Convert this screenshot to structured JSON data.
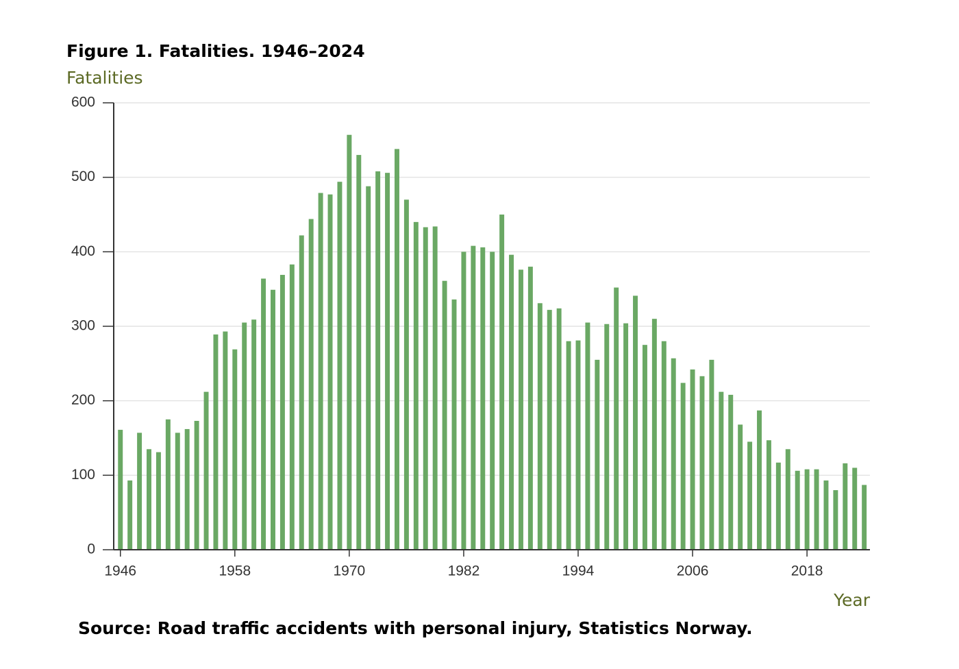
{
  "chart_data": {
    "type": "bar",
    "title": "Figure 1. Fatalities. 1946–2024",
    "y_label": "Fatalities",
    "x_label": "Year",
    "source": "Source: Road traffic accidents with personal injury, Statistics Norway.",
    "color": "#6aa864",
    "grid": true,
    "x": [
      1946,
      1947,
      1948,
      1949,
      1950,
      1951,
      1952,
      1953,
      1954,
      1955,
      1956,
      1957,
      1958,
      1959,
      1960,
      1961,
      1962,
      1963,
      1964,
      1965,
      1966,
      1967,
      1968,
      1969,
      1970,
      1971,
      1972,
      1973,
      1974,
      1975,
      1976,
      1977,
      1978,
      1979,
      1980,
      1981,
      1982,
      1983,
      1984,
      1985,
      1986,
      1987,
      1988,
      1989,
      1990,
      1991,
      1992,
      1993,
      1994,
      1995,
      1996,
      1997,
      1998,
      1999,
      2000,
      2001,
      2002,
      2003,
      2004,
      2005,
      2006,
      2007,
      2008,
      2009,
      2010,
      2011,
      2012,
      2013,
      2014,
      2015,
      2016,
      2017,
      2018,
      2019,
      2020,
      2021,
      2022,
      2023,
      2024
    ],
    "values": [
      161,
      93,
      157,
      135,
      131,
      175,
      157,
      162,
      173,
      212,
      289,
      293,
      269,
      305,
      309,
      364,
      349,
      369,
      383,
      422,
      444,
      479,
      477,
      494,
      557,
      530,
      488,
      508,
      506,
      538,
      470,
      440,
      433,
      434,
      361,
      336,
      400,
      408,
      406,
      400,
      450,
      396,
      376,
      380,
      331,
      322,
      324,
      280,
      281,
      305,
      255,
      303,
      352,
      304,
      341,
      275,
      310,
      280,
      257,
      224,
      242,
      233,
      255,
      212,
      208,
      168,
      145,
      187,
      147,
      117,
      135,
      106,
      108,
      108,
      93,
      80,
      116,
      110,
      87
    ],
    "xlim": [
      1945.3,
      2024.6
    ],
    "xticks": [
      1946,
      1958,
      1970,
      1982,
      1994,
      2006,
      2018
    ],
    "ylim": [
      0,
      600
    ],
    "yticks": [
      0,
      100,
      200,
      300,
      400,
      500,
      600
    ]
  }
}
